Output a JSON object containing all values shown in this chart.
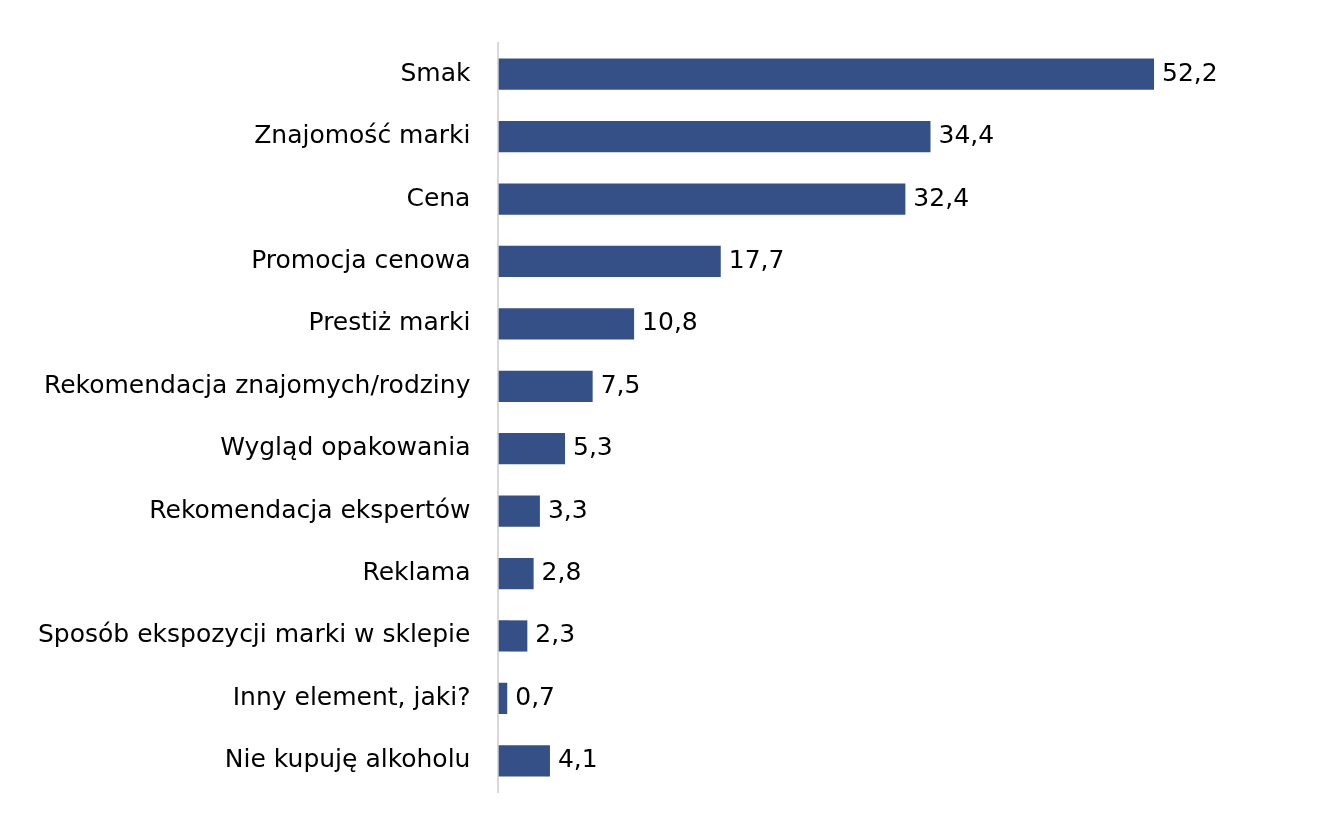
{
  "chart_data": {
    "type": "bar",
    "orientation": "horizontal",
    "categories": [
      "Smak",
      "Znajomość marki",
      "Cena",
      "Promocja cenowa",
      "Prestiż marki",
      "Rekomendacja znajomych/rodziny",
      "Wygląd opakowania",
      "Rekomendacja ekspertów",
      "Reklama",
      "Sposób ekspozycji marki w sklepie",
      "Inny element, jaki?",
      "Nie kupuję alkoholu"
    ],
    "values": [
      52.2,
      34.4,
      32.4,
      17.7,
      10.8,
      7.5,
      5.3,
      3.3,
      2.8,
      2.3,
      0.7,
      4.1
    ],
    "value_labels": [
      "52,2",
      "34,4",
      "32,4",
      "17,7",
      "10,8",
      "7,5",
      "5,3",
      "3,3",
      "2,8",
      "2,3",
      "0,7",
      "4,1"
    ],
    "color": "#345086"
  }
}
